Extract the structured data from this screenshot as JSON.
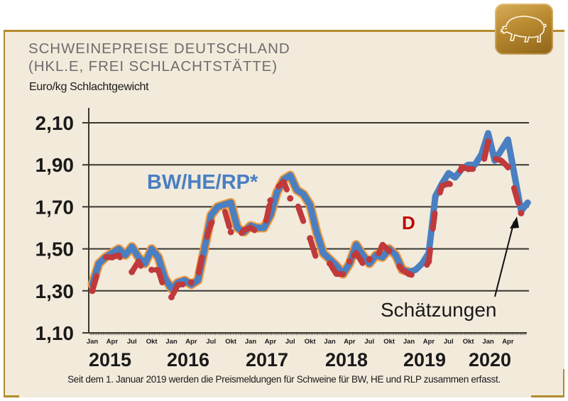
{
  "header": {
    "title_line1": "SCHWEINEPREISE DEUTSCHLAND",
    "title_line2": "(HKL.E, FREI SCHLACHTSTÄTTE)",
    "unit_label": "Euro/kg Schlachtgewicht",
    "badge_icon": "pig-icon"
  },
  "footnote": "Seit dem 1. Januar 2019 werden die Preismeldungen für Schweine für BW, HE und RLP zusammen erfasst.",
  "colors": {
    "background": "#f2eadb",
    "frame": "#b38a2e",
    "bw_line": "#4a7fc1",
    "bw_outline": "#f0983a",
    "d_line": "#c0393b",
    "d_label": "#c00000"
  },
  "chart_data": {
    "type": "line",
    "title": "SCHWEINEPREISE DEUTSCHLAND (HKL.E, FREI SCHLACHTSTÄTTE)",
    "ylabel": "Euro/kg Schlachtgewicht",
    "xlabel": "",
    "ylim": [
      1.1,
      2.1
    ],
    "yticks": [
      "1,10",
      "1,30",
      "1,50",
      "1,70",
      "1,90",
      "2,10"
    ],
    "ytick_values": [
      1.1,
      1.3,
      1.5,
      1.7,
      1.9,
      2.1
    ],
    "grid": true,
    "month_tick_labels": [
      "Jan",
      "Apr",
      "Jul",
      "Okt",
      "Jan",
      "Apr",
      "Jul",
      "Okt",
      "Jan",
      "Apr",
      "Jul",
      "Okt",
      "Jan",
      "Apr",
      "Jul",
      "Okt",
      "Jan",
      "Apr",
      "Jul",
      "Okt",
      "Jan",
      "Apr"
    ],
    "year_labels": [
      "2015",
      "2016",
      "2017",
      "2018",
      "2019",
      "2020"
    ],
    "x_start": "2015-01",
    "x_step": "month",
    "series": [
      {
        "name": "BW/HE/RP*",
        "label": "BW/HE/RP*",
        "values": [
          1.33,
          1.43,
          1.46,
          1.48,
          1.5,
          1.47,
          1.51,
          1.46,
          1.43,
          1.5,
          1.46,
          1.36,
          1.31,
          1.34,
          1.35,
          1.33,
          1.35,
          1.5,
          1.66,
          1.7,
          1.71,
          1.72,
          1.6,
          1.58,
          1.61,
          1.6,
          1.6,
          1.66,
          1.77,
          1.83,
          1.85,
          1.78,
          1.76,
          1.71,
          1.58,
          1.48,
          1.45,
          1.42,
          1.38,
          1.43,
          1.52,
          1.47,
          1.43,
          1.47,
          1.46,
          1.5,
          1.47,
          1.4,
          1.39,
          1.4,
          1.43,
          1.48,
          1.75,
          1.81,
          1.86,
          1.84,
          1.88,
          1.9,
          1.9,
          1.95,
          2.05,
          1.92,
          1.97,
          2.02,
          1.85,
          1.68,
          1.72
        ]
      },
      {
        "name": "D",
        "label": "D",
        "values": [
          1.3,
          1.41,
          1.46,
          1.46,
          1.47,
          1.41,
          1.39,
          1.44,
          1.38,
          1.4,
          1.4,
          1.3,
          1.27,
          1.33,
          1.33,
          1.34,
          1.37,
          1.52,
          1.62,
          1.67,
          1.69,
          1.58,
          1.55,
          1.59,
          1.6,
          1.58,
          1.58,
          1.73,
          1.79,
          1.82,
          1.74,
          1.72,
          1.63,
          1.55,
          1.45,
          1.43,
          1.43,
          1.38,
          1.38,
          1.44,
          1.48,
          1.43,
          1.45,
          1.45,
          1.52,
          1.49,
          1.44,
          1.4,
          1.38,
          1.37,
          1.38,
          1.44,
          1.69,
          1.8,
          1.81,
          1.8,
          1.89,
          1.88,
          1.88,
          1.87,
          2.01,
          1.93,
          1.92,
          1.89,
          1.78,
          1.67
        ]
      }
    ],
    "annotations": [
      {
        "text": "Schätzungen",
        "target": "2020-05"
      }
    ]
  }
}
